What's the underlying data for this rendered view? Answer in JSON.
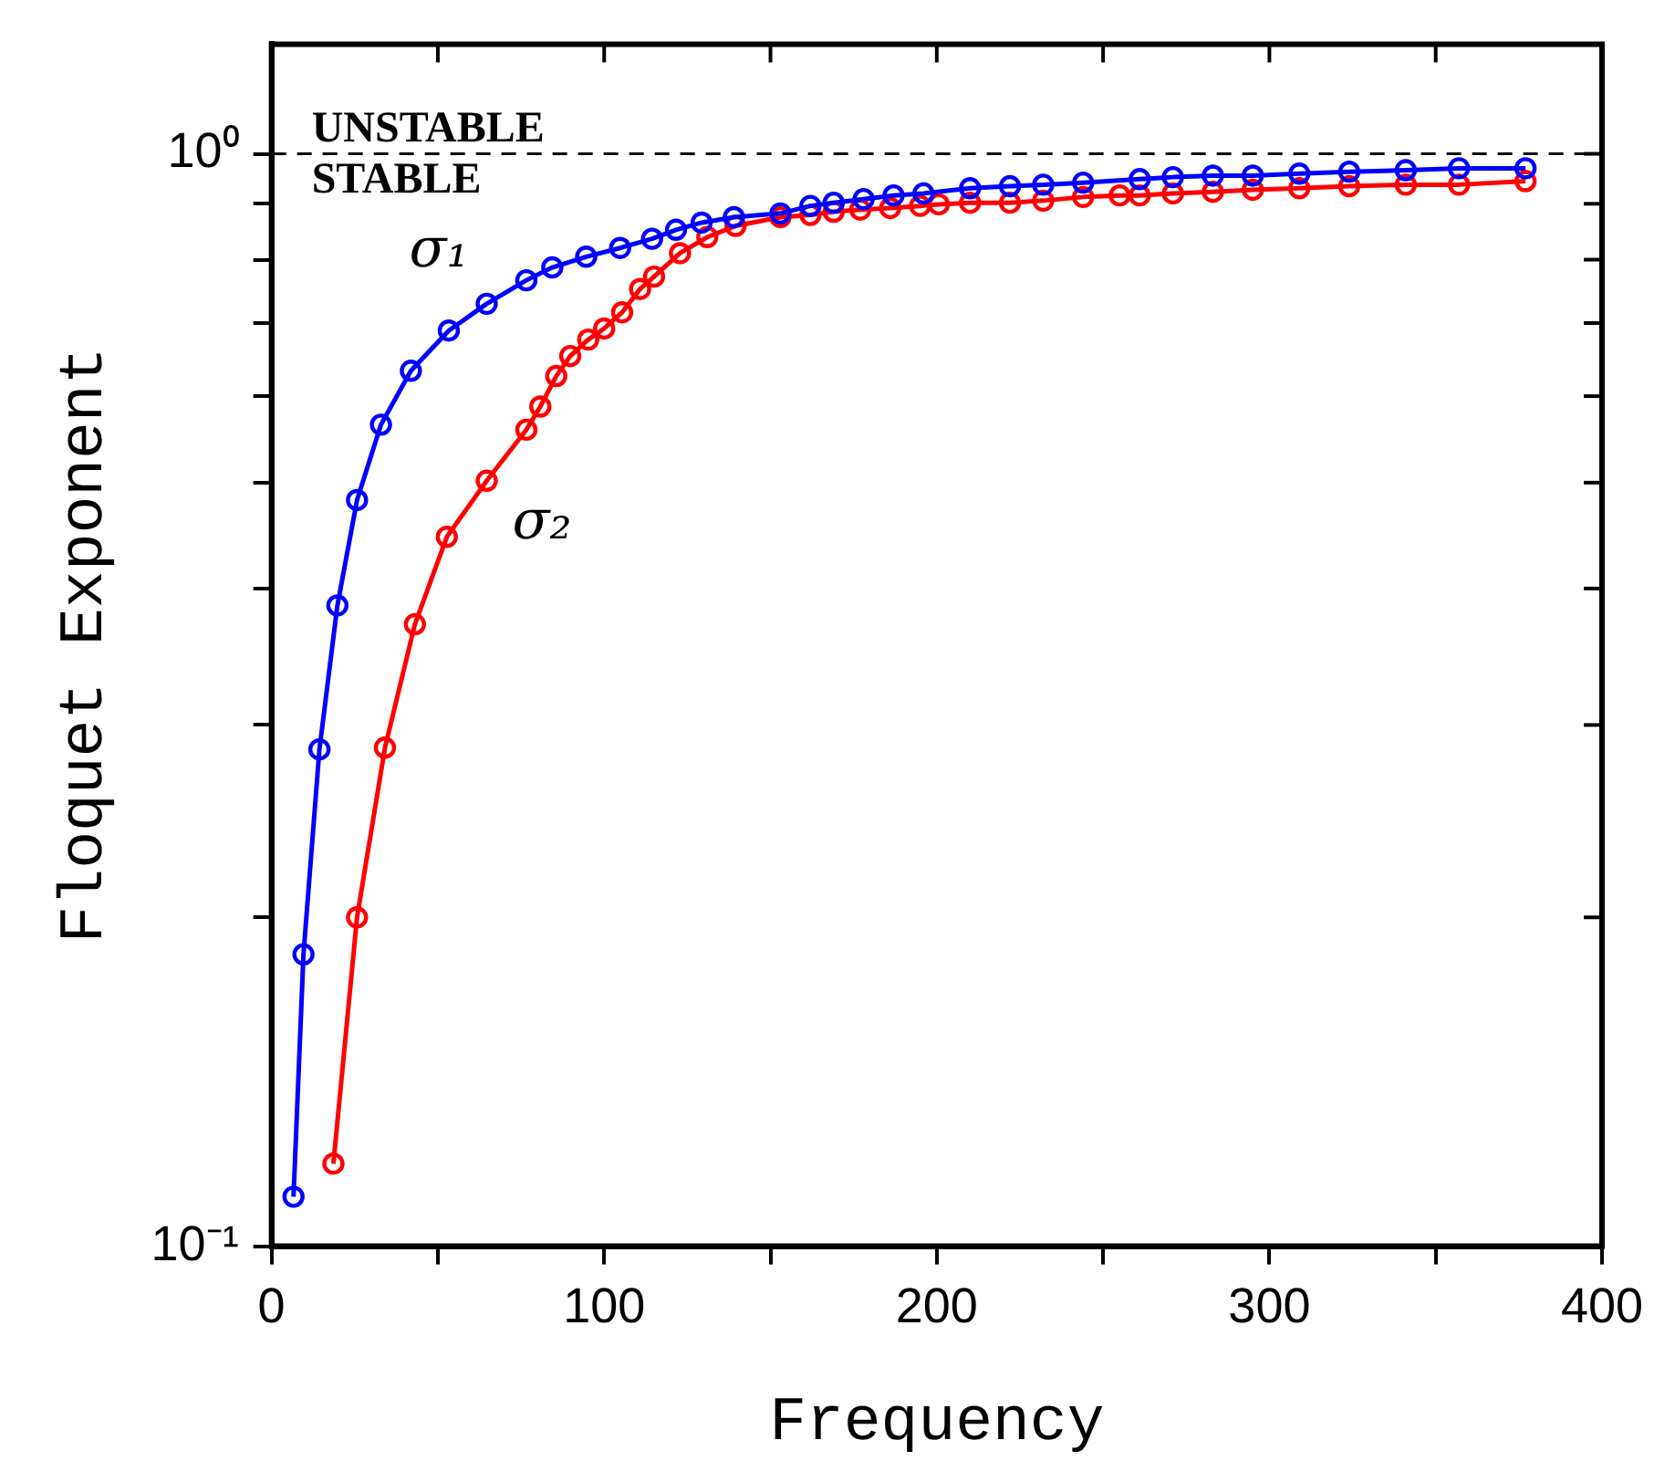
{
  "chart_data": {
    "type": "line",
    "xlabel": "Frequency",
    "ylabel": "Floquet Exponent",
    "log": "y",
    "xlim": [
      0,
      400
    ],
    "ylim": [
      0.1,
      1.26
    ],
    "xticks": [
      0,
      {
        "value": 50,
        "label": null
      },
      100,
      {
        "value": 150,
        "label": null
      },
      200,
      {
        "value": 250,
        "label": null
      },
      300,
      {
        "value": 350,
        "label": null
      },
      400
    ],
    "yticks": [
      {
        "value": 0.1,
        "label": "10⁻¹"
      },
      {
        "value": 0.2,
        "label": null
      },
      {
        "value": 0.3,
        "label": null
      },
      {
        "value": 0.4,
        "label": null
      },
      {
        "value": 0.5,
        "label": null
      },
      {
        "value": 0.6,
        "label": null
      },
      {
        "value": 0.7,
        "label": null
      },
      {
        "value": 0.8,
        "label": null
      },
      {
        "value": 0.9,
        "label": null
      },
      {
        "value": 1,
        "label": "10⁰"
      }
    ],
    "grid": false,
    "legend": false,
    "marker": "circle",
    "line_style": "solid",
    "ref_lines": [
      {
        "axis": "y",
        "value": 1,
        "line_style": "dashed",
        "color": "#000000",
        "label": "UNSTABLE"
      }
    ],
    "annotations": [
      "STABLE"
    ],
    "series": [
      {
        "name": "σ₁",
        "color": "#0000ff",
        "x": [
          6.6,
          9.6,
          14.4,
          19.8,
          25.7,
          32.9,
          41.9,
          53.3,
          64.7,
          76.6,
          84.4,
          94.6,
          104.8,
          114.4,
          121.6,
          129.3,
          139,
          153,
          162,
          169,
          178,
          187,
          196,
          210,
          222,
          232,
          244,
          261,
          271,
          283,
          295,
          309,
          324,
          341,
          357,
          377
        ],
        "values": [
          0.111,
          0.185,
          0.285,
          0.386,
          0.482,
          0.565,
          0.633,
          0.689,
          0.729,
          0.766,
          0.787,
          0.805,
          0.82,
          0.836,
          0.852,
          0.865,
          0.875,
          0.882,
          0.896,
          0.902,
          0.909,
          0.916,
          0.92,
          0.93,
          0.934,
          0.937,
          0.941,
          0.948,
          0.952,
          0.955,
          0.955,
          0.959,
          0.963,
          0.966,
          0.97,
          0.97
        ]
      },
      {
        "name": "σ₂",
        "color": "#ff0000",
        "x": [
          18.6,
          25.7,
          34.1,
          43.1,
          52.7,
          64.7,
          76.6,
          80.8,
          85.6,
          89.8,
          95.2,
          100,
          105.4,
          110.8,
          115,
          122.8,
          131,
          139.5,
          153,
          162,
          169,
          177,
          186,
          195,
          200.6,
          210,
          222,
          232,
          244,
          255,
          261,
          271,
          283,
          295,
          309,
          324,
          341,
          357,
          377
        ],
        "values": [
          0.119,
          0.2,
          0.286,
          0.371,
          0.446,
          0.502,
          0.559,
          0.587,
          0.626,
          0.653,
          0.676,
          0.692,
          0.716,
          0.752,
          0.772,
          0.811,
          0.839,
          0.859,
          0.875,
          0.879,
          0.885,
          0.889,
          0.892,
          0.896,
          0.899,
          0.902,
          0.902,
          0.906,
          0.913,
          0.916,
          0.916,
          0.92,
          0.923,
          0.927,
          0.93,
          0.934,
          0.937,
          0.937,
          0.944
        ]
      }
    ]
  }
}
